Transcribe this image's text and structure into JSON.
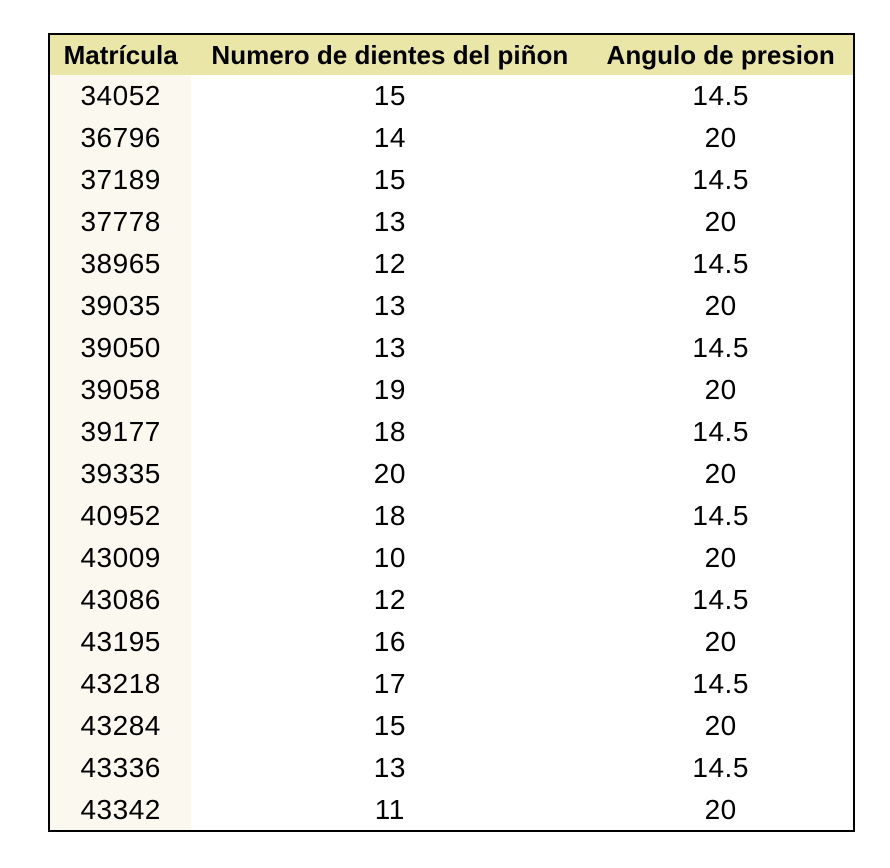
{
  "colors": {
    "header_bg": "#e9e6a8",
    "first_col_bg": "#fbf9ef",
    "border": "#000000",
    "text": "#000000",
    "page_bg": "#ffffff"
  },
  "chart_data": {
    "type": "table",
    "title": "",
    "columns": [
      "Matrícula",
      "Numero de dientes del piñon",
      "Angulo de presion"
    ],
    "rows": [
      [
        "34052",
        "15",
        "14.5"
      ],
      [
        "36796",
        "14",
        "20"
      ],
      [
        "37189",
        "15",
        "14.5"
      ],
      [
        "37778",
        "13",
        "20"
      ],
      [
        "38965",
        "12",
        "14.5"
      ],
      [
        "39035",
        "13",
        "20"
      ],
      [
        "39050",
        "13",
        "14.5"
      ],
      [
        "39058",
        "19",
        "20"
      ],
      [
        "39177",
        "18",
        "14.5"
      ],
      [
        "39335",
        "20",
        "20"
      ],
      [
        "40952",
        "18",
        "14.5"
      ],
      [
        "43009",
        "10",
        "20"
      ],
      [
        "43086",
        "12",
        "14.5"
      ],
      [
        "43195",
        "16",
        "20"
      ],
      [
        "43218",
        "17",
        "14.5"
      ],
      [
        "43284",
        "15",
        "20"
      ],
      [
        "43336",
        "13",
        "14.5"
      ],
      [
        "43342",
        "11",
        "20"
      ]
    ],
    "layout": {
      "legend": "none",
      "grid": "off",
      "column_alignment": [
        "center",
        "center",
        "center"
      ]
    }
  }
}
